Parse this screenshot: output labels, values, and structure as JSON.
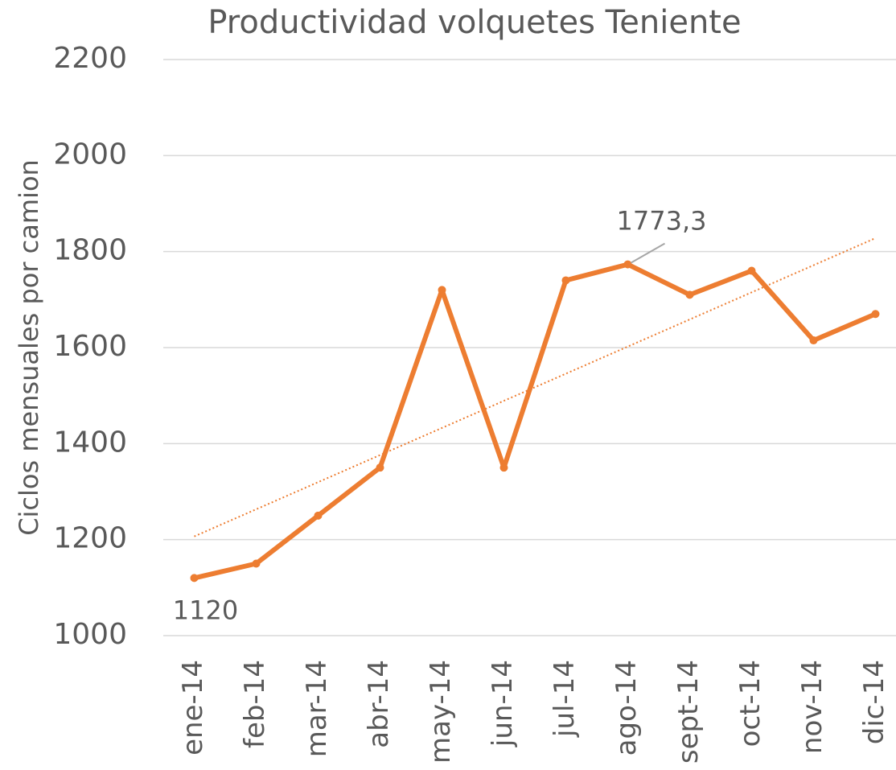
{
  "chart_data": {
    "type": "line",
    "title": "Productividad volquetes Teniente",
    "y_label": "Ciclos mensuales por camion",
    "categories": [
      "ene-14",
      "feb-14",
      "mar-14",
      "abr-14",
      "may-14",
      "jun-14",
      "jul-14",
      "ago-14",
      "sept-14",
      "oct-14",
      "nov-14",
      "dic-14"
    ],
    "values": [
      1120,
      1150,
      1250,
      1350,
      1720,
      1350,
      1740,
      1773.3,
      1710,
      1760,
      1615,
      1670
    ],
    "value_labels": [
      "1120",
      null,
      null,
      null,
      null,
      null,
      null,
      "1773,3",
      null,
      null,
      null,
      null
    ],
    "color": "#ed7d31",
    "trendline": true,
    "ylim": [
      1000,
      2200
    ],
    "yticks": [
      1000,
      1200,
      1400,
      1600,
      1800,
      2000,
      2200
    ],
    "grid": true
  }
}
